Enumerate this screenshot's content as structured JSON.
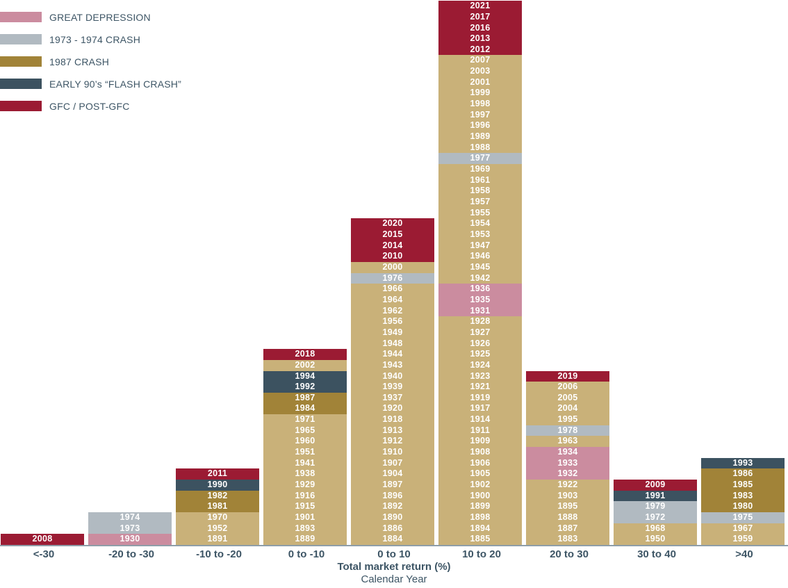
{
  "legend": {
    "items": [
      {
        "label": "GREAT DEPRESSION",
        "group": "gd"
      },
      {
        "label": "1973 - 1974 CRASH",
        "group": "c73"
      },
      {
        "label": "1987 CRASH",
        "group": "c87"
      },
      {
        "label": "EARLY 90’s “FLASH CRASH”",
        "group": "fc"
      },
      {
        "label": "GFC / POST-GFC",
        "group": "gfc"
      }
    ]
  },
  "chart_data": {
    "type": "bar",
    "subtype": "stacked histogram of calendar years by annual total market return bin",
    "title": "",
    "xlabel": "Total market return (%)",
    "xlabel2": "Calendar Year",
    "legend_position": "top-left",
    "grid": false,
    "categories": [
      "<-30",
      "-20 to -30",
      "-10 to -20",
      "0 to -10",
      "0 to 10",
      "10 to 20",
      "20 to 30",
      "30 to 40",
      ">40"
    ],
    "counts": [
      1,
      3,
      7,
      18,
      30,
      50,
      16,
      6,
      8
    ],
    "group_labels": {
      "base": "Other years",
      "gd": "GREAT DEPRESSION",
      "c73": "1973 - 1974 CRASH",
      "c87": "1987 CRASH",
      "fc": "EARLY 90’s “FLASH CRASH”",
      "gfc": "GFC / POST-GFC"
    },
    "group_colors": {
      "base": "#C9B179",
      "gd": "#CB8C9F",
      "c73": "#B1BAC1",
      "c87": "#A18338",
      "fc": "#3C5260",
      "gfc": "#9B1B33"
    },
    "columns": [
      {
        "bin": "<-30",
        "years": [
          [
            "2008",
            "gfc"
          ]
        ]
      },
      {
        "bin": "-20 to -30",
        "years": [
          [
            "1930",
            "gd"
          ],
          [
            "1973",
            "c73"
          ],
          [
            "1974",
            "c73"
          ]
        ]
      },
      {
        "bin": "-10 to -20",
        "years": [
          [
            "1891",
            "base"
          ],
          [
            "1952",
            "base"
          ],
          [
            "1970",
            "base"
          ],
          [
            "1981",
            "c87"
          ],
          [
            "1982",
            "c87"
          ],
          [
            "1990",
            "fc"
          ],
          [
            "2011",
            "gfc"
          ]
        ]
      },
      {
        "bin": "0 to -10",
        "years": [
          [
            "1889",
            "base"
          ],
          [
            "1893",
            "base"
          ],
          [
            "1901",
            "base"
          ],
          [
            "1915",
            "base"
          ],
          [
            "1916",
            "base"
          ],
          [
            "1929",
            "base"
          ],
          [
            "1938",
            "base"
          ],
          [
            "1941",
            "base"
          ],
          [
            "1951",
            "base"
          ],
          [
            "1960",
            "base"
          ],
          [
            "1965",
            "base"
          ],
          [
            "1971",
            "base"
          ],
          [
            "1984",
            "c87"
          ],
          [
            "1987",
            "c87"
          ],
          [
            "1992",
            "fc"
          ],
          [
            "1994",
            "fc"
          ],
          [
            "2002",
            "base"
          ],
          [
            "2018",
            "gfc"
          ]
        ]
      },
      {
        "bin": "0 to 10",
        "years": [
          [
            "1884",
            "base"
          ],
          [
            "1886",
            "base"
          ],
          [
            "1890",
            "base"
          ],
          [
            "1892",
            "base"
          ],
          [
            "1896",
            "base"
          ],
          [
            "1897",
            "base"
          ],
          [
            "1904",
            "base"
          ],
          [
            "1907",
            "base"
          ],
          [
            "1910",
            "base"
          ],
          [
            "1912",
            "base"
          ],
          [
            "1913",
            "base"
          ],
          [
            "1918",
            "base"
          ],
          [
            "1920",
            "base"
          ],
          [
            "1937",
            "base"
          ],
          [
            "1939",
            "base"
          ],
          [
            "1940",
            "base"
          ],
          [
            "1943",
            "base"
          ],
          [
            "1944",
            "base"
          ],
          [
            "1948",
            "base"
          ],
          [
            "1949",
            "base"
          ],
          [
            "1956",
            "base"
          ],
          [
            "1962",
            "base"
          ],
          [
            "1964",
            "base"
          ],
          [
            "1966",
            "base"
          ],
          [
            "1976",
            "c73"
          ],
          [
            "2000",
            "base"
          ],
          [
            "2010",
            "gfc"
          ],
          [
            "2014",
            "gfc"
          ],
          [
            "2015",
            "gfc"
          ],
          [
            "2020",
            "gfc"
          ]
        ]
      },
      {
        "bin": "10 to 20",
        "years": [
          [
            "1885",
            "base"
          ],
          [
            "1894",
            "base"
          ],
          [
            "1898",
            "base"
          ],
          [
            "1899",
            "base"
          ],
          [
            "1900",
            "base"
          ],
          [
            "1902",
            "base"
          ],
          [
            "1905",
            "base"
          ],
          [
            "1906",
            "base"
          ],
          [
            "1908",
            "base"
          ],
          [
            "1909",
            "base"
          ],
          [
            "1911",
            "base"
          ],
          [
            "1914",
            "base"
          ],
          [
            "1917",
            "base"
          ],
          [
            "1919",
            "base"
          ],
          [
            "1921",
            "base"
          ],
          [
            "1923",
            "base"
          ],
          [
            "1924",
            "base"
          ],
          [
            "1925",
            "base"
          ],
          [
            "1926",
            "base"
          ],
          [
            "1927",
            "base"
          ],
          [
            "1928",
            "base"
          ],
          [
            "1931",
            "gd"
          ],
          [
            "1935",
            "gd"
          ],
          [
            "1936",
            "gd"
          ],
          [
            "1942",
            "base"
          ],
          [
            "1945",
            "base"
          ],
          [
            "1946",
            "base"
          ],
          [
            "1947",
            "base"
          ],
          [
            "1953",
            "base"
          ],
          [
            "1954",
            "base"
          ],
          [
            "1955",
            "base"
          ],
          [
            "1957",
            "base"
          ],
          [
            "1958",
            "base"
          ],
          [
            "1961",
            "base"
          ],
          [
            "1969",
            "base"
          ],
          [
            "1977",
            "c73"
          ],
          [
            "1988",
            "base"
          ],
          [
            "1989",
            "base"
          ],
          [
            "1996",
            "base"
          ],
          [
            "1997",
            "base"
          ],
          [
            "1998",
            "base"
          ],
          [
            "1999",
            "base"
          ],
          [
            "2001",
            "base"
          ],
          [
            "2003",
            "base"
          ],
          [
            "2007",
            "base"
          ],
          [
            "2012",
            "gfc"
          ],
          [
            "2013",
            "gfc"
          ],
          [
            "2016",
            "gfc"
          ],
          [
            "2017",
            "gfc"
          ],
          [
            "2021",
            "gfc"
          ]
        ]
      },
      {
        "bin": "20 to 30",
        "years": [
          [
            "1883",
            "base"
          ],
          [
            "1887",
            "base"
          ],
          [
            "1888",
            "base"
          ],
          [
            "1895",
            "base"
          ],
          [
            "1903",
            "base"
          ],
          [
            "1922",
            "base"
          ],
          [
            "1932",
            "gd"
          ],
          [
            "1933",
            "gd"
          ],
          [
            "1934",
            "gd"
          ],
          [
            "1963",
            "base"
          ],
          [
            "1978",
            "c73"
          ],
          [
            "1995",
            "base"
          ],
          [
            "2004",
            "base"
          ],
          [
            "2005",
            "base"
          ],
          [
            "2006",
            "base"
          ],
          [
            "2019",
            "gfc"
          ]
        ]
      },
      {
        "bin": "30 to 40",
        "years": [
          [
            "1950",
            "base"
          ],
          [
            "1968",
            "base"
          ],
          [
            "1972",
            "c73"
          ],
          [
            "1979",
            "c73"
          ],
          [
            "1991",
            "fc"
          ],
          [
            "2009",
            "gfc"
          ]
        ]
      },
      {
        "bin": ">40",
        "years": [
          [
            "1959",
            "base"
          ],
          [
            "1967",
            "base"
          ],
          [
            "1975",
            "c73"
          ],
          [
            "1980",
            "c87"
          ],
          [
            "1983",
            "c87"
          ],
          [
            "1985",
            "c87"
          ],
          [
            "1986",
            "c87"
          ],
          [
            "1993",
            "fc"
          ]
        ]
      }
    ]
  }
}
